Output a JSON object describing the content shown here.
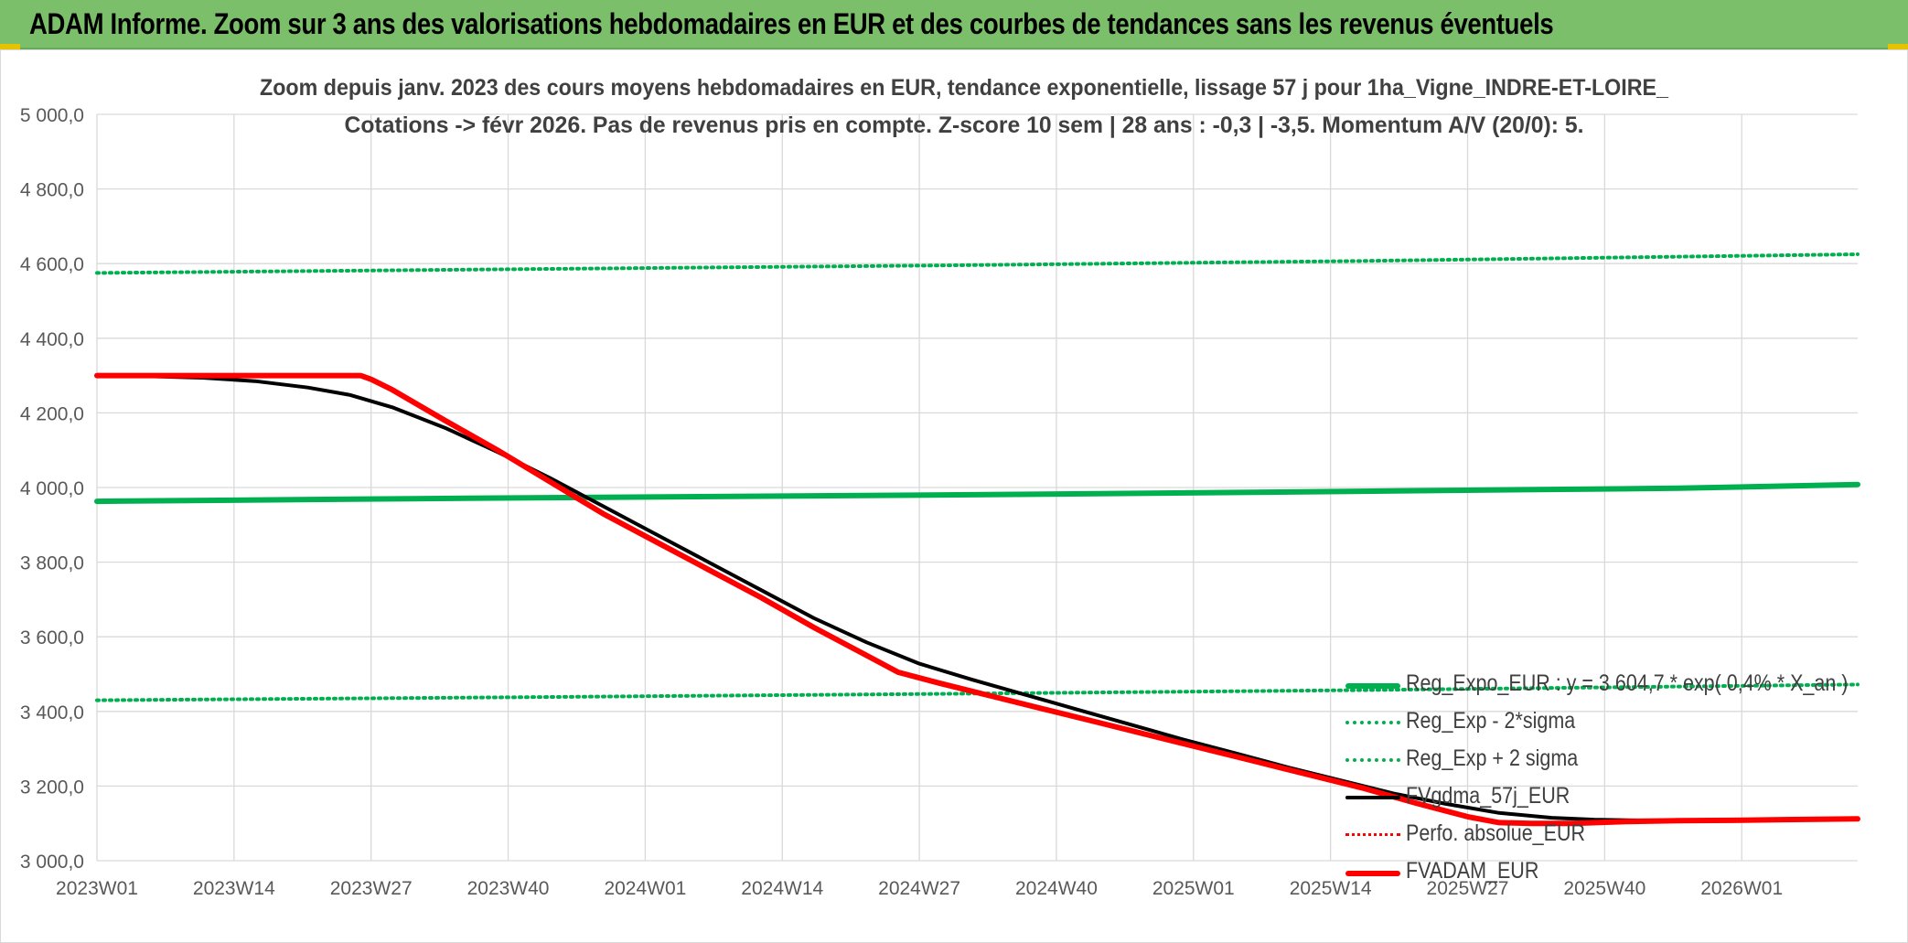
{
  "banner": {
    "title": "ADAM Informe. Zoom sur 3 ans des valorisations hebdomadaires en EUR et des courbes de tendances sans les revenus éventuels"
  },
  "colors": {
    "banner_bg": "#7bbf6a",
    "green": "#00b050",
    "black": "#000000",
    "red": "#ff0000",
    "grid": "#d9d9d9",
    "text": "#404040"
  },
  "chart_data": {
    "type": "line",
    "title_line1": "Zoom depuis janv. 2023 des cours moyens hebdomadaires en EUR, tendance exponentielle, lissage 57 j pour 1ha_Vigne_INDRE-ET-LOIRE_",
    "title_line2": "Cotations -> févr 2026. Pas de revenus pris en compte. Z-score 10 sem | 28 ans : -0,3 | -3,5. Momentum A/V (20/0): 5.",
    "xlabel": "",
    "ylabel": "",
    "ylim": [
      3000,
      5000
    ],
    "yticks": [
      "3 000,0",
      "3 200,0",
      "3 400,0",
      "3 600,0",
      "3 800,0",
      "4 000,0",
      "4 200,0",
      "4 400,0",
      "4 600,0",
      "4 800,0",
      "5 000,0"
    ],
    "xticks": [
      "2023W01",
      "2023W14",
      "2023W27",
      "2023W40",
      "2024W01",
      "2024W14",
      "2024W27",
      "2024W40",
      "2025W01",
      "2025W14",
      "2025W27",
      "2025W40",
      "2026W01"
    ],
    "x_range_weeks": [
      0,
      167
    ],
    "grid": true,
    "legend_position": "bottom-right",
    "series": [
      {
        "name": "Reg_Expo_EUR : y = 3 604,7 * exp( 0,4% *  X_an )",
        "color": "#00b050",
        "style": "solid",
        "width": 6,
        "points": [
          [
            0,
            3963
          ],
          [
            30,
            3970
          ],
          [
            60,
            3976
          ],
          [
            90,
            3982
          ],
          [
            120,
            3990
          ],
          [
            150,
            3998
          ],
          [
            167,
            4008
          ]
        ]
      },
      {
        "name": "Reg_Exp - 2*sigma",
        "color": "#00b050",
        "style": "dotted",
        "width": 4,
        "points": [
          [
            0,
            3430
          ],
          [
            40,
            3438
          ],
          [
            80,
            3447
          ],
          [
            120,
            3457
          ],
          [
            167,
            3472
          ]
        ]
      },
      {
        "name": "Reg_Exp + 2 sigma",
        "color": "#00b050",
        "style": "dotted",
        "width": 4,
        "points": [
          [
            0,
            4575
          ],
          [
            40,
            4585
          ],
          [
            80,
            4595
          ],
          [
            120,
            4607
          ],
          [
            167,
            4625
          ]
        ]
      },
      {
        "name": "FVgdma_57j_EUR",
        "color": "#000000",
        "style": "solid",
        "width": 4,
        "points": [
          [
            0,
            4300
          ],
          [
            5,
            4298
          ],
          [
            10,
            4294
          ],
          [
            15,
            4285
          ],
          [
            20,
            4268
          ],
          [
            24,
            4248
          ],
          [
            28,
            4215
          ],
          [
            33,
            4160
          ],
          [
            38,
            4095
          ],
          [
            43,
            4025
          ],
          [
            48,
            3950
          ],
          [
            53,
            3875
          ],
          [
            58,
            3800
          ],
          [
            63,
            3725
          ],
          [
            68,
            3650
          ],
          [
            73,
            3585
          ],
          [
            78,
            3528
          ],
          [
            83,
            3485
          ],
          [
            88,
            3445
          ],
          [
            93,
            3405
          ],
          [
            98,
            3365
          ],
          [
            103,
            3325
          ],
          [
            108,
            3288
          ],
          [
            113,
            3250
          ],
          [
            118,
            3215
          ],
          [
            123,
            3180
          ],
          [
            128,
            3152
          ],
          [
            133,
            3128
          ],
          [
            138,
            3115
          ],
          [
            142,
            3110
          ],
          [
            146,
            3108
          ],
          [
            150,
            3108
          ],
          [
            155,
            3110
          ],
          [
            160,
            3110
          ],
          [
            167,
            3112
          ]
        ]
      },
      {
        "name": "Perfo. absolue_EUR",
        "color": "#ff0000",
        "style": "dotted",
        "width": 3,
        "points": []
      },
      {
        "name": "FVADAM_EUR",
        "color": "#ff0000",
        "style": "solid",
        "width": 6,
        "points": [
          [
            0,
            4300
          ],
          [
            10,
            4300
          ],
          [
            20,
            4300
          ],
          [
            25,
            4300
          ],
          [
            26,
            4290
          ],
          [
            28,
            4262
          ],
          [
            33,
            4180
          ],
          [
            38,
            4100
          ],
          [
            43,
            4015
          ],
          [
            48,
            3930
          ],
          [
            53,
            3855
          ],
          [
            58,
            3780
          ],
          [
            63,
            3705
          ],
          [
            68,
            3625
          ],
          [
            73,
            3550
          ],
          [
            76,
            3505
          ],
          [
            80,
            3475
          ],
          [
            85,
            3440
          ],
          [
            90,
            3405
          ],
          [
            95,
            3370
          ],
          [
            100,
            3335
          ],
          [
            105,
            3300
          ],
          [
            110,
            3265
          ],
          [
            115,
            3230
          ],
          [
            120,
            3195
          ],
          [
            125,
            3155
          ],
          [
            130,
            3118
          ],
          [
            133,
            3102
          ],
          [
            136,
            3100
          ],
          [
            140,
            3100
          ],
          [
            145,
            3105
          ],
          [
            150,
            3107
          ],
          [
            155,
            3108
          ],
          [
            160,
            3110
          ],
          [
            167,
            3112
          ]
        ]
      }
    ]
  }
}
